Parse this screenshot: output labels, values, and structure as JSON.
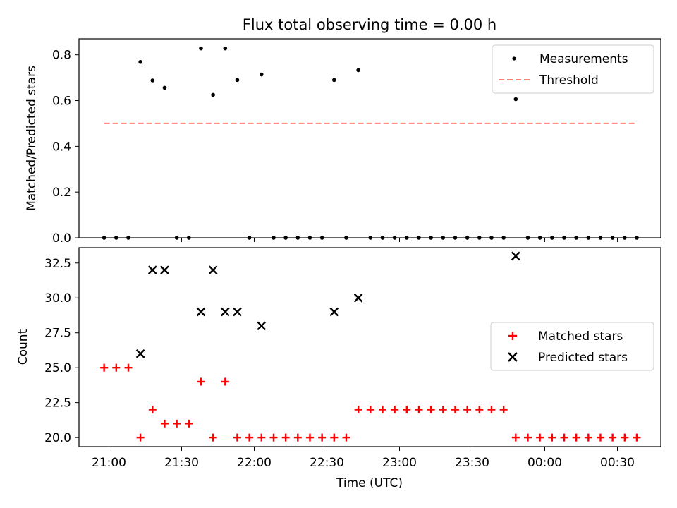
{
  "chart_data": [
    {
      "type": "scatter",
      "title": "Flux total observing time = 0.00 h",
      "xlabel": "",
      "ylabel": "Matched/Predicted stars",
      "ylim": [
        0,
        0.87
      ],
      "yticks": [
        "0.0",
        "0.2",
        "0.4",
        "0.6",
        "0.8"
      ],
      "xticks": [
        "21:00",
        "21:30",
        "22:00",
        "22:30",
        "23:00",
        "23:30",
        "00:00",
        "00:30"
      ],
      "legend": {
        "position": "top-right",
        "entries": [
          "Measurements",
          "Threshold"
        ]
      },
      "series": [
        {
          "name": "Measurements",
          "marker": "dot",
          "color": "#000000",
          "points": [
            [
              "20:58",
              0.0
            ],
            [
              "21:03",
              0.0
            ],
            [
              "21:08",
              0.0
            ],
            [
              "21:13",
              0.769
            ],
            [
              "21:18",
              0.688
            ],
            [
              "21:23",
              0.656
            ],
            [
              "21:28",
              0.0
            ],
            [
              "21:33",
              0.0
            ],
            [
              "21:38",
              0.828
            ],
            [
              "21:43",
              0.625
            ],
            [
              "21:48",
              0.828
            ],
            [
              "21:53",
              0.69
            ],
            [
              "21:58",
              0.0
            ],
            [
              "22:03",
              0.714
            ],
            [
              "22:08",
              0.0
            ],
            [
              "22:13",
              0.0
            ],
            [
              "22:18",
              0.0
            ],
            [
              "22:23",
              0.0
            ],
            [
              "22:28",
              0.0
            ],
            [
              "22:33",
              0.69
            ],
            [
              "22:38",
              0.0
            ],
            [
              "22:43",
              0.733
            ],
            [
              "22:48",
              0.0
            ],
            [
              "22:53",
              0.0
            ],
            [
              "22:58",
              0.0
            ],
            [
              "23:03",
              0.0
            ],
            [
              "23:08",
              0.0
            ],
            [
              "23:13",
              0.0
            ],
            [
              "23:18",
              0.0
            ],
            [
              "23:23",
              0.0
            ],
            [
              "23:28",
              0.0
            ],
            [
              "23:33",
              0.0
            ],
            [
              "23:38",
              0.0
            ],
            [
              "23:43",
              0.0
            ],
            [
              "23:48",
              0.606
            ],
            [
              "23:53",
              0.0
            ],
            [
              "23:58",
              0.0
            ],
            [
              "00:03",
              0.0
            ],
            [
              "00:08",
              0.0
            ],
            [
              "00:13",
              0.0
            ],
            [
              "00:18",
              0.0
            ],
            [
              "00:23",
              0.0
            ],
            [
              "00:28",
              0.0
            ],
            [
              "00:33",
              0.0
            ],
            [
              "00:38",
              0.0
            ]
          ]
        },
        {
          "name": "Threshold",
          "style": "dashed",
          "color": "#ff7f7f",
          "points": [
            [
              "20:58",
              0.5
            ],
            [
              "00:38",
              0.5
            ]
          ]
        }
      ]
    },
    {
      "type": "scatter",
      "title": "",
      "xlabel": "Time (UTC)",
      "ylabel": "Count",
      "ylim": [
        19.35,
        33.6
      ],
      "yticks": [
        "20.0",
        "22.5",
        "25.0",
        "27.5",
        "30.0",
        "32.5"
      ],
      "xticks": [
        "21:00",
        "21:30",
        "22:00",
        "22:30",
        "23:00",
        "23:30",
        "00:00",
        "00:30"
      ],
      "legend": {
        "position": "center-right",
        "entries": [
          "Matched stars",
          "Predicted stars"
        ]
      },
      "series": [
        {
          "name": "Matched stars",
          "marker": "plus",
          "color": "#ff0000",
          "points": [
            [
              "20:58",
              25
            ],
            [
              "21:03",
              25
            ],
            [
              "21:08",
              25
            ],
            [
              "21:13",
              20
            ],
            [
              "21:18",
              22
            ],
            [
              "21:23",
              21
            ],
            [
              "21:28",
              21
            ],
            [
              "21:33",
              21
            ],
            [
              "21:38",
              24
            ],
            [
              "21:43",
              20
            ],
            [
              "21:48",
              24
            ],
            [
              "21:53",
              20
            ],
            [
              "21:58",
              20
            ],
            [
              "22:03",
              20
            ],
            [
              "22:08",
              20
            ],
            [
              "22:13",
              20
            ],
            [
              "22:18",
              20
            ],
            [
              "22:23",
              20
            ],
            [
              "22:28",
              20
            ],
            [
              "22:33",
              20
            ],
            [
              "22:38",
              20
            ],
            [
              "22:43",
              22
            ],
            [
              "22:48",
              22
            ],
            [
              "22:53",
              22
            ],
            [
              "22:58",
              22
            ],
            [
              "23:03",
              22
            ],
            [
              "23:08",
              22
            ],
            [
              "23:13",
              22
            ],
            [
              "23:18",
              22
            ],
            [
              "23:23",
              22
            ],
            [
              "23:28",
              22
            ],
            [
              "23:33",
              22
            ],
            [
              "23:38",
              22
            ],
            [
              "23:43",
              22
            ],
            [
              "23:48",
              20
            ],
            [
              "23:53",
              20
            ],
            [
              "23:58",
              20
            ],
            [
              "00:03",
              20
            ],
            [
              "00:08",
              20
            ],
            [
              "00:13",
              20
            ],
            [
              "00:18",
              20
            ],
            [
              "00:23",
              20
            ],
            [
              "00:28",
              20
            ],
            [
              "00:33",
              20
            ],
            [
              "00:38",
              20
            ]
          ]
        },
        {
          "name": "Predicted stars",
          "marker": "x",
          "color": "#000000",
          "points": [
            [
              "21:13",
              26
            ],
            [
              "21:18",
              32
            ],
            [
              "21:23",
              32
            ],
            [
              "21:38",
              29
            ],
            [
              "21:43",
              32
            ],
            [
              "21:48",
              29
            ],
            [
              "21:53",
              29
            ],
            [
              "22:03",
              28
            ],
            [
              "22:33",
              29
            ],
            [
              "22:43",
              30
            ],
            [
              "23:48",
              33
            ]
          ]
        }
      ]
    }
  ]
}
